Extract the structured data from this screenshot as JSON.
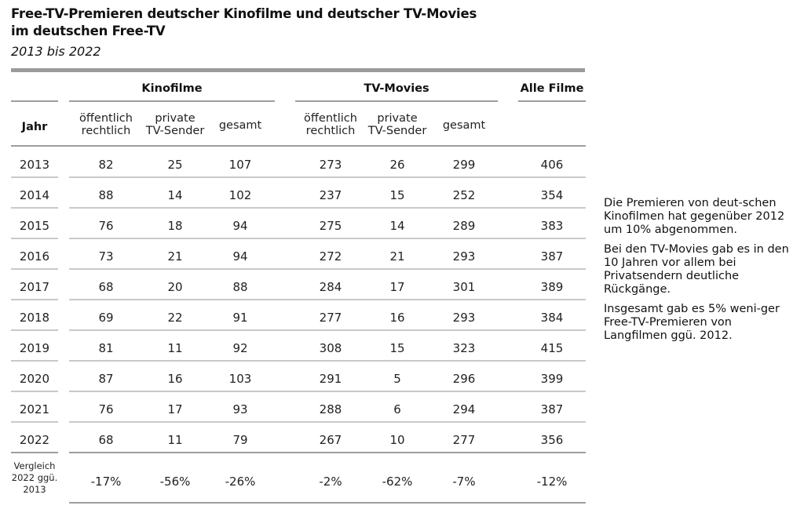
{
  "title_line1": "Free-TV-Premieren deutscher Kinofilme und deutscher TV-Movies",
  "title_line2": "im deutschen Free-TV",
  "subtitle": "2013 bis 2022",
  "groups": {
    "kino": "Kinofilme",
    "tv": "TV-Movies",
    "alle": "Alle Filme"
  },
  "headers": {
    "jahr": "Jahr",
    "oer1": "öffentlich",
    "oer2": "rechtlich",
    "priv1": "private",
    "priv2": "TV-Sender",
    "gesamt": "gesamt"
  },
  "rows": [
    {
      "jahr": "2013",
      "k_oer": "82",
      "k_priv": "25",
      "k_ges": "107",
      "t_oer": "273",
      "t_priv": "26",
      "t_ges": "299",
      "alle": "406"
    },
    {
      "jahr": "2014",
      "k_oer": "88",
      "k_priv": "14",
      "k_ges": "102",
      "t_oer": "237",
      "t_priv": "15",
      "t_ges": "252",
      "alle": "354"
    },
    {
      "jahr": "2015",
      "k_oer": "76",
      "k_priv": "18",
      "k_ges": "94",
      "t_oer": "275",
      "t_priv": "14",
      "t_ges": "289",
      "alle": "383"
    },
    {
      "jahr": "2016",
      "k_oer": "73",
      "k_priv": "21",
      "k_ges": "94",
      "t_oer": "272",
      "t_priv": "21",
      "t_ges": "293",
      "alle": "387"
    },
    {
      "jahr": "2017",
      "k_oer": "68",
      "k_priv": "20",
      "k_ges": "88",
      "t_oer": "284",
      "t_priv": "17",
      "t_ges": "301",
      "alle": "389"
    },
    {
      "jahr": "2018",
      "k_oer": "69",
      "k_priv": "22",
      "k_ges": "91",
      "t_oer": "277",
      "t_priv": "16",
      "t_ges": "293",
      "alle": "384"
    },
    {
      "jahr": "2019",
      "k_oer": "81",
      "k_priv": "11",
      "k_ges": "92",
      "t_oer": "308",
      "t_priv": "15",
      "t_ges": "323",
      "alle": "415"
    },
    {
      "jahr": "2020",
      "k_oer": "87",
      "k_priv": "16",
      "k_ges": "103",
      "t_oer": "291",
      "t_priv": "5",
      "t_ges": "296",
      "alle": "399"
    },
    {
      "jahr": "2021",
      "k_oer": "76",
      "k_priv": "17",
      "k_ges": "93",
      "t_oer": "288",
      "t_priv": "6",
      "t_ges": "294",
      "alle": "387"
    },
    {
      "jahr": "2022",
      "k_oer": "68",
      "k_priv": "11",
      "k_ges": "79",
      "t_oer": "267",
      "t_priv": "10",
      "t_ges": "277",
      "alle": "356"
    }
  ],
  "comparison": {
    "label1": "Vergleich",
    "label2": "2022 ggü.",
    "label3": "2013",
    "k_oer": "-17%",
    "k_priv": "-56%",
    "k_ges": "-26%",
    "t_oer": "-2%",
    "t_priv": "-62%",
    "t_ges": "-7%",
    "alle": "-12%"
  },
  "notes": {
    "p1": "Die Premieren von deut-schen Kinofilmen hat gegenüber 2012 um 10% abgenommen.",
    "p2": "Bei den TV-Movies gab es in den 10 Jahren vor allem bei Privatsendern deutliche Rückgänge.",
    "p3": "Insgesamt gab es 5% weni-ger Free-TV-Premieren von Langfilmen ggü. 2012."
  }
}
